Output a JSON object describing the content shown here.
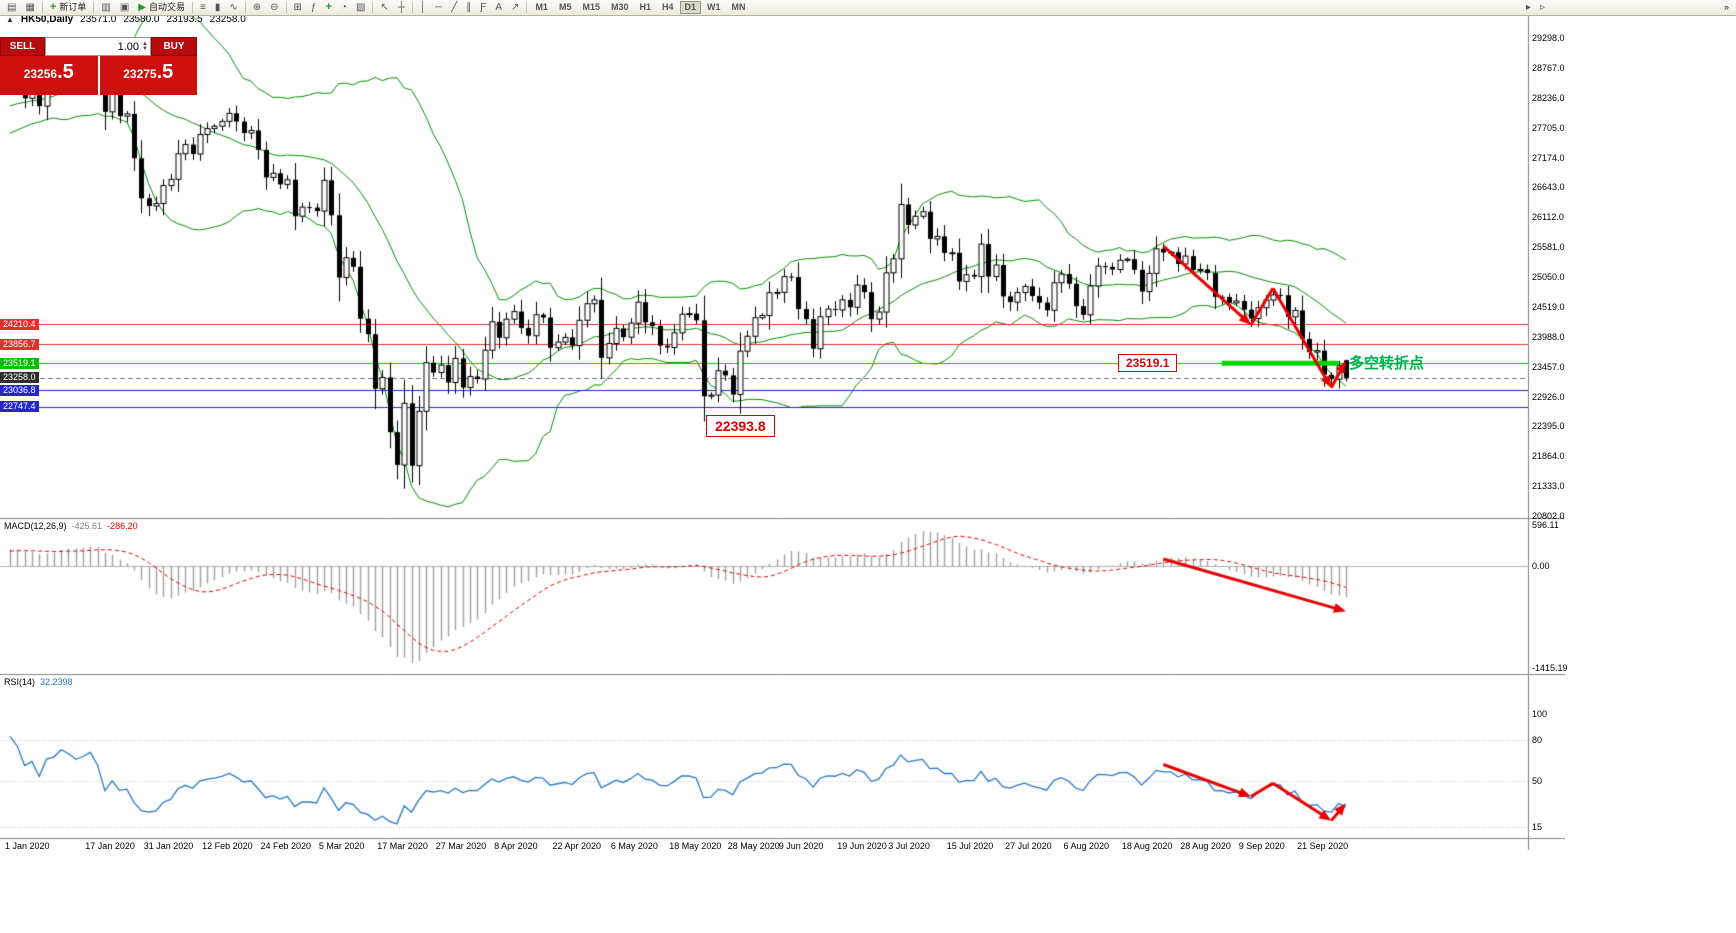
{
  "toolbar": {
    "buttons": [
      {
        "name": "new-chart",
        "glyph": "▤"
      },
      {
        "name": "chart-profiles",
        "glyph": "▦"
      },
      {
        "sep": true
      },
      {
        "name": "new-order",
        "glyph": "+",
        "label": "新订单",
        "glyph_color": "#1f9e1f"
      },
      {
        "sep": true
      },
      {
        "name": "market-watch",
        "glyph": "▥"
      },
      {
        "name": "navigator",
        "glyph": "▣"
      },
      {
        "name": "auto-trading",
        "glyph": "▶",
        "label": "自动交易",
        "glyph_color": "#1f9e1f"
      },
      {
        "sep": true
      },
      {
        "name": "bar-chart-mode",
        "glyph": "≡"
      },
      {
        "name": "candlestick-mode",
        "glyph": "▮"
      },
      {
        "name": "line-chart-mode",
        "glyph": "∿"
      },
      {
        "sep": true
      },
      {
        "name": "zoom-in",
        "glyph": "⊕"
      },
      {
        "name": "zoom-out",
        "glyph": "⊖"
      },
      {
        "sep": true
      },
      {
        "name": "tile-windows",
        "glyph": "⊞"
      },
      {
        "name": "indicators-list",
        "glyph": "ƒ"
      },
      {
        "name": "add-indicator",
        "glyph": "+",
        "glyph_color": "#1f9e1f"
      },
      {
        "name": "period-selector",
        "glyph": "◔"
      },
      {
        "name": "templates",
        "glyph": "▧"
      },
      {
        "sep": true
      },
      {
        "name": "cursor-tool",
        "glyph": "↖"
      },
      {
        "name": "crosshair-tool",
        "glyph": "┼"
      },
      {
        "sep": true
      },
      {
        "name": "vertical-line-tool",
        "glyph": "│"
      },
      {
        "name": "horizontal-line-tool",
        "glyph": "─"
      },
      {
        "name": "trendline-tool",
        "glyph": "╱"
      },
      {
        "name": "channel-tool",
        "glyph": "∥"
      },
      {
        "name": "fibonacci-tool",
        "glyph": "Ƒ"
      },
      {
        "name": "text-tool",
        "glyph": "A"
      },
      {
        "name": "arrows-tool",
        "glyph": "↗"
      },
      {
        "sep": true
      }
    ],
    "timeframes": [
      "M1",
      "M5",
      "M15",
      "M30",
      "H1",
      "H4",
      "D1",
      "W1",
      "MN"
    ],
    "active_timeframe": "D1",
    "right_buttons": [
      {
        "name": "auto-scroll",
        "glyph": "▸"
      },
      {
        "name": "chart-shift",
        "glyph": "▹"
      }
    ],
    "overflow_glyph": "»"
  },
  "chart_header": {
    "collapse_icon": "▲",
    "symbol": "HK50,Daily",
    "open": "23571.0",
    "high": "23580.0",
    "low": "23193.5",
    "close": "23258.0"
  },
  "trade_panel": {
    "sell_label": "SELL",
    "buy_label": "BUY",
    "volume": "1.00",
    "spin_up": "▲",
    "spin_down": "▼",
    "sell_price_main": "23256",
    "sell_price_frac": ".5",
    "buy_price_main": "23275",
    "buy_price_frac": ".5"
  },
  "indicators": {
    "macd": {
      "label": "MACD(12,26,9)",
      "value_main": "-425.61",
      "value_signal": "-286.20",
      "axis_labels": [
        "596.11",
        "0.00",
        "-1415.19"
      ]
    },
    "rsi": {
      "label": "RSI(14)",
      "value": "32.2398",
      "axis_labels": [
        "100",
        "80",
        "50",
        "15"
      ],
      "axis_values": [
        100,
        80,
        50,
        15
      ],
      "levels": [
        80,
        50,
        15
      ]
    }
  },
  "annotations": {
    "level_label_1": "23519.1",
    "turning_point_text": "多空转折点",
    "low_label": "22393.8"
  },
  "price_axis": {
    "labels": [
      "29298.0",
      "28767.0",
      "28236.0",
      "27705.0",
      "27174.0",
      "26643.0",
      "26112.0",
      "25581.0",
      "25050.0",
      "24519.0",
      "23988.0",
      "23457.0",
      "22926.0",
      "22395.0",
      "21864.0",
      "21333.0",
      "20802.0"
    ]
  },
  "time_axis": {
    "labels": [
      {
        "text": "1 Jan 2020",
        "bar": 0
      },
      {
        "text": "17 Jan 2020",
        "bar": 11
      },
      {
        "text": "31 Jan 2020",
        "bar": 19
      },
      {
        "text": "12 Feb 2020",
        "bar": 27
      },
      {
        "text": "24 Feb 2020",
        "bar": 35
      },
      {
        "text": "5 Mar 2020",
        "bar": 43
      },
      {
        "text": "17 Mar 2020",
        "bar": 51
      },
      {
        "text": "27 Mar 2020",
        "bar": 59
      },
      {
        "text": "8 Apr 2020",
        "bar": 67
      },
      {
        "text": "22 Apr 2020",
        "bar": 75
      },
      {
        "text": "6 May 2020",
        "bar": 83
      },
      {
        "text": "18 May 2020",
        "bar": 91
      },
      {
        "text": "28 May 2020",
        "bar": 99
      },
      {
        "text": "9 Jun 2020",
        "bar": 106
      },
      {
        "text": "19 Jun 2020",
        "bar": 114
      },
      {
        "text": "3 Jul 2020",
        "bar": 121
      },
      {
        "text": "15 Jul 2020",
        "bar": 129
      },
      {
        "text": "27 Jul 2020",
        "bar": 137
      },
      {
        "text": "6 Aug 2020",
        "bar": 145
      },
      {
        "text": "18 Aug 2020",
        "bar": 153
      },
      {
        "text": "28 Aug 2020",
        "bar": 161
      },
      {
        "text": "9 Sep 2020",
        "bar": 169
      },
      {
        "text": "21 Sep 2020",
        "bar": 177
      }
    ]
  },
  "hlines": [
    {
      "value": 24210.4,
      "color": "#e03030",
      "badge": "24210.4"
    },
    {
      "value": 23856.7,
      "color": "#e03030",
      "badge": "23856.7"
    },
    {
      "value": 23519.1,
      "color": "#00c000",
      "badge": "23519.1"
    },
    {
      "value": 23036.8,
      "color": "#2525cc",
      "badge": "23036.8"
    },
    {
      "value": 22747.4,
      "color": "#2525cc",
      "badge": "22747.4"
    }
  ],
  "current_price": {
    "value": 23258.0,
    "badge": "23258.0",
    "color": "#2e2e2e"
  },
  "chart_data": {
    "type": "candlestick+indicators",
    "symbol": "HK50",
    "timeframe": "Daily",
    "price_scale": {
      "max": 29298,
      "min": 20802,
      "step": 531
    },
    "macd_scale": {
      "max": 596.11,
      "min": -1415.19
    },
    "bollinger": {
      "period": 20,
      "deviation": 2
    },
    "macd": {
      "fast": 12,
      "slow": 26,
      "signal": 9
    },
    "rsi": {
      "period": 14
    },
    "colors": {
      "candle_up": "#ffffff",
      "candle_down": "#000000",
      "candle_line": "#000000",
      "bollinger": "#008f00",
      "macd_hist": "#a0a0a0",
      "macd_signal": "#e60000",
      "rsi_line": "#2878c8",
      "arrow": "#e60000",
      "green_zone": "#00d800",
      "current_line": "#707070"
    },
    "warmup_closes": [
      27350,
      27410,
      27520,
      27480,
      27560,
      27620,
      27580,
      27680,
      27740,
      27800,
      27870,
      27820,
      27900,
      27960,
      28010,
      27950,
      28080,
      28120,
      28190,
      28250,
      28320,
      28190,
      28260,
      28310,
      28380,
      28450
    ],
    "closes": [
      28543,
      28451,
      28226,
      28322,
      28087,
      28561,
      28638,
      28954,
      28885,
      28773,
      28883,
      29056,
      28795,
      27985,
      28341,
      27909,
      27949,
      27160,
      26449,
      26312,
      26356,
      26675,
      26786,
      27241,
      27404,
      27236,
      27583,
      27688,
      27730,
      27816,
      27959,
      27813,
      27609,
      27656,
      27309,
      26820,
      26893,
      26696,
      26778,
      26130,
      26292,
      26284,
      26222,
      26768,
      26147,
      25040,
      25392,
      25232,
      24309,
      24033,
      23064,
      23264,
      22292,
      21709,
      22805,
      21696,
      22663,
      23527,
      23352,
      23484,
      23175,
      23603,
      23085,
      23280,
      23236,
      23749,
      24253,
      23970,
      24300,
      24435,
      24145,
      24006,
      24380,
      24330,
      23793,
      23893,
      23977,
      23831,
      24280,
      24575,
      24643,
      23613,
      23868,
      24137,
      23980,
      24230,
      24602,
      24245,
      24180,
      23830,
      23797,
      24057,
      24388,
      24399,
      24280,
      22930,
      22952,
      23384,
      23301,
      22961,
      23732,
      23996,
      24326,
      24366,
      24770,
      24777,
      25057,
      25049,
      24480,
      24301,
      23776,
      24344,
      24481,
      24464,
      24643,
      24511,
      24907,
      24781,
      24301,
      24427,
      25124,
      25373,
      26339,
      25975,
      26129,
      26211,
      25727,
      25772,
      25477,
      25481,
      24971,
      25089,
      25057,
      25635,
      25058,
      25263,
      24706,
      24603,
      24773,
      24883,
      24711,
      24595,
      24458,
      24947,
      25102,
      24930,
      24532,
      24377,
      24890,
      25244,
      25230,
      25183,
      25347,
      25367,
      25178,
      24791,
      25114,
      25551,
      25486,
      25491,
      25281,
      25422,
      25177,
      25185,
      25120,
      24697,
      24695,
      24590,
      24624,
      24469,
      24313,
      24503,
      24640,
      24732,
      24726,
      24341,
      24455,
      23950,
      23716,
      23742,
      23311,
      23235,
      23476,
      23258
    ],
    "last_bar": [
      23571,
      23580,
      23193.5,
      23258
    ],
    "green_zone": {
      "price": 23519.1,
      "x1_bar": 166,
      "x2_bar": 182
    },
    "arrows_price": {
      "points": [
        [
          158,
          25600
        ],
        [
          170,
          24200
        ],
        [
          173,
          24850
        ],
        [
          181,
          23080
        ],
        [
          183,
          23560
        ]
      ],
      "heads": [
        1,
        3,
        4
      ]
    },
    "arrow_macd": {
      "points": [
        [
          158,
          100
        ],
        [
          183,
          -620
        ]
      ],
      "heads": [
        1
      ]
    },
    "arrows_rsi": {
      "points": [
        [
          158,
          62
        ],
        [
          170,
          38
        ],
        [
          173,
          48
        ],
        [
          181,
          20
        ],
        [
          183,
          33
        ]
      ],
      "heads": [
        1,
        3,
        4
      ]
    }
  }
}
